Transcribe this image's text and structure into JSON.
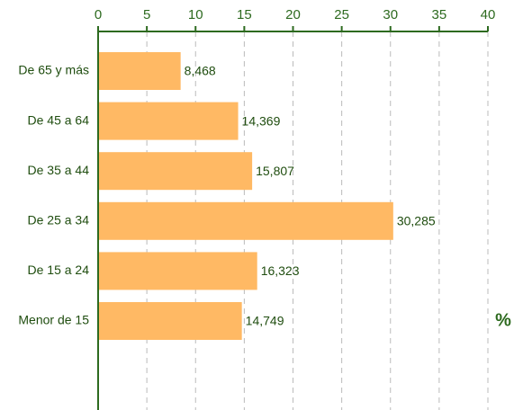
{
  "chart_data": {
    "type": "barh",
    "categories": [
      "De 65 y más",
      "De 45 a 64",
      "De 35 a 44",
      "De 25 a 34",
      "De 15 a 24",
      "Menor de 15"
    ],
    "values": [
      8.468,
      14.369,
      15.807,
      30.285,
      16.323,
      14.749
    ],
    "value_labels": [
      "8,468",
      "14,369",
      "15,807",
      "30,285",
      "16,323",
      "14,749"
    ],
    "color": "#ffb964",
    "xlabel": "%",
    "xlim": [
      0,
      40
    ],
    "xticks": [
      0,
      5,
      10,
      15,
      20,
      25,
      30,
      35,
      40
    ],
    "grid": true
  }
}
